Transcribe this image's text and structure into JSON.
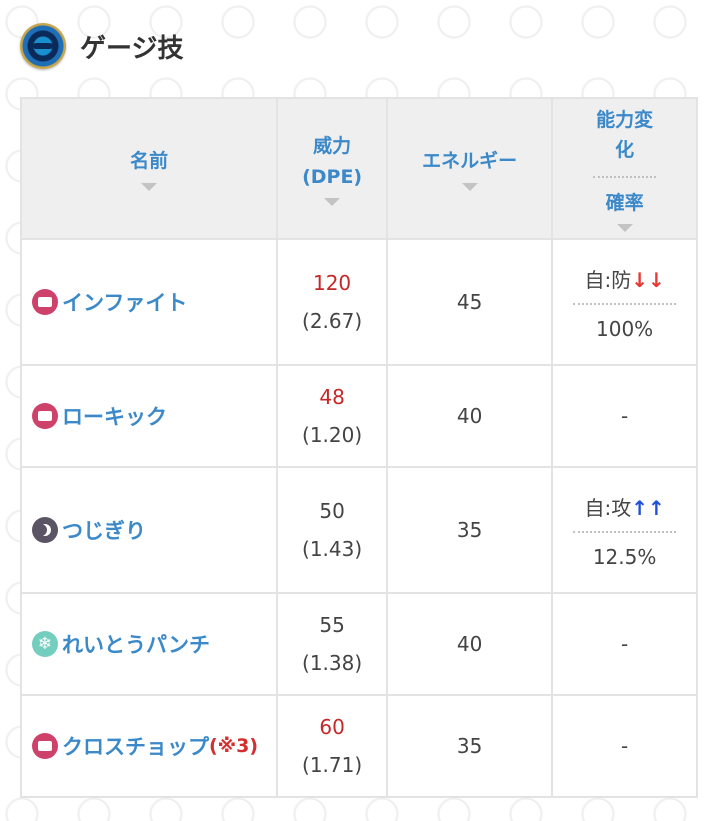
{
  "header": {
    "title": "ゲージ技",
    "icon": "charged-move-icon"
  },
  "columns": {
    "name": "名前",
    "power_line1": "威力",
    "power_line2": "(DPE)",
    "energy": "エネルギー",
    "effect_line1": "能力変化",
    "effect_line2": "確率"
  },
  "moves": [
    {
      "type_icon": "fighting-type-icon",
      "name": "インファイト",
      "note": "",
      "power": "120",
      "power_red": true,
      "dpe": "(2.67)",
      "energy": "45",
      "effect_label": "自:防",
      "effect_arrows": "↓↓",
      "effect_dir": "down",
      "chance": "100%"
    },
    {
      "type_icon": "fighting-type-icon",
      "name": "ローキック",
      "note": "",
      "power": "48",
      "power_red": true,
      "dpe": "(1.20)",
      "energy": "40",
      "effect_label": "",
      "effect_arrows": "",
      "effect_dir": "",
      "chance": "-"
    },
    {
      "type_icon": "dark-type-icon",
      "name": "つじぎり",
      "note": "",
      "power": "50",
      "power_red": false,
      "dpe": "(1.43)",
      "energy": "35",
      "effect_label": "自:攻",
      "effect_arrows": "↑↑",
      "effect_dir": "up",
      "chance": "12.5%"
    },
    {
      "type_icon": "ice-type-icon",
      "name": "れいとうパンチ",
      "note": "",
      "power": "55",
      "power_red": false,
      "dpe": "(1.38)",
      "energy": "40",
      "effect_label": "",
      "effect_arrows": "",
      "effect_dir": "",
      "chance": "-"
    },
    {
      "type_icon": "fighting-type-icon",
      "name": "クロスチョップ",
      "note": "(※3)",
      "power": "60",
      "power_red": true,
      "dpe": "(1.71)",
      "energy": "35",
      "effect_label": "",
      "effect_arrows": "",
      "effect_dir": "",
      "chance": "-"
    }
  ]
}
